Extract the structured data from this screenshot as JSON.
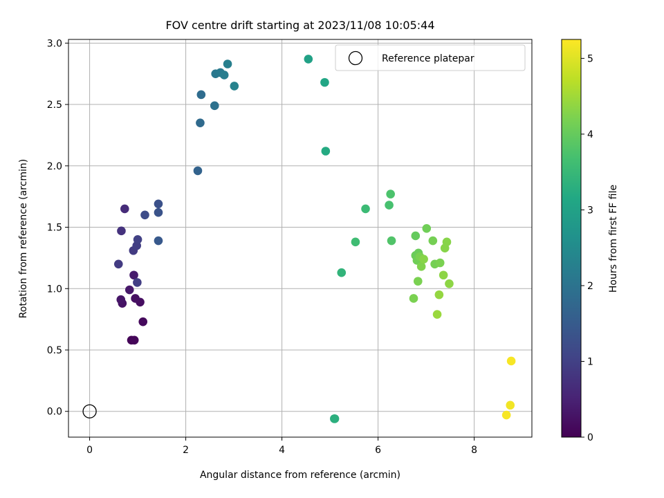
{
  "chart_data": {
    "type": "scatter",
    "title": "FOV centre drift starting at 2023/11/08 10:05:44",
    "xlabel": "Angular distance from reference (arcmin)",
    "ylabel": "Rotation from reference (arcmin)",
    "xlim": [
      -0.44,
      9.2
    ],
    "ylim": [
      -0.21,
      3.03
    ],
    "xticks": [
      0,
      2,
      4,
      6,
      8
    ],
    "yticks": [
      0.0,
      0.5,
      1.0,
      1.5,
      2.0,
      2.5,
      3.0
    ],
    "xtick_labels": [
      "0",
      "2",
      "4",
      "6",
      "8"
    ],
    "ytick_labels": [
      "0.0",
      "0.5",
      "1.0",
      "1.5",
      "2.0",
      "2.5",
      "3.0"
    ],
    "grid": true,
    "legend": {
      "placement": "top-right",
      "entries": [
        "Reference platepar"
      ]
    },
    "colorbar": {
      "label": "Hours from first FF file",
      "range": [
        0,
        5.25
      ],
      "ticks": [
        0,
        1,
        2,
        3,
        4,
        5
      ],
      "tick_labels": [
        "0",
        "1",
        "2",
        "3",
        "4",
        "5"
      ],
      "colormap": "viridis"
    },
    "reference": {
      "x": 0,
      "y": 0
    },
    "points": [
      {
        "x": 0.87,
        "y": 0.58,
        "h": 0.05
      },
      {
        "x": 0.93,
        "y": 0.58,
        "h": 0.08
      },
      {
        "x": 1.11,
        "y": 0.73,
        "h": 0.12
      },
      {
        "x": 1.05,
        "y": 0.89,
        "h": 0.2
      },
      {
        "x": 0.95,
        "y": 0.92,
        "h": 0.22
      },
      {
        "x": 0.68,
        "y": 0.88,
        "h": 0.25
      },
      {
        "x": 0.65,
        "y": 0.91,
        "h": 0.3
      },
      {
        "x": 0.83,
        "y": 0.99,
        "h": 0.35
      },
      {
        "x": 0.92,
        "y": 1.11,
        "h": 0.4
      },
      {
        "x": 0.99,
        "y": 1.05,
        "h": 0.95
      },
      {
        "x": 0.6,
        "y": 1.2,
        "h": 0.9
      },
      {
        "x": 0.91,
        "y": 1.31,
        "h": 0.9
      },
      {
        "x": 0.98,
        "y": 1.35,
        "h": 0.95
      },
      {
        "x": 1.0,
        "y": 1.4,
        "h": 1.0
      },
      {
        "x": 0.66,
        "y": 1.47,
        "h": 0.75
      },
      {
        "x": 0.73,
        "y": 1.65,
        "h": 0.65
      },
      {
        "x": 1.15,
        "y": 1.6,
        "h": 1.2
      },
      {
        "x": 1.43,
        "y": 1.62,
        "h": 1.35
      },
      {
        "x": 1.43,
        "y": 1.69,
        "h": 1.3
      },
      {
        "x": 1.43,
        "y": 1.39,
        "h": 1.45
      },
      {
        "x": 2.25,
        "y": 1.96,
        "h": 1.65
      },
      {
        "x": 2.3,
        "y": 2.35,
        "h": 1.8
      },
      {
        "x": 2.32,
        "y": 2.58,
        "h": 1.85
      },
      {
        "x": 2.6,
        "y": 2.49,
        "h": 1.95
      },
      {
        "x": 2.62,
        "y": 2.75,
        "h": 2.1
      },
      {
        "x": 2.72,
        "y": 2.76,
        "h": 2.15
      },
      {
        "x": 2.8,
        "y": 2.74,
        "h": 2.2
      },
      {
        "x": 2.87,
        "y": 2.83,
        "h": 2.25
      },
      {
        "x": 3.01,
        "y": 2.65,
        "h": 2.3
      },
      {
        "x": 4.55,
        "y": 2.87,
        "h": 3.0
      },
      {
        "x": 4.89,
        "y": 2.68,
        "h": 3.1
      },
      {
        "x": 4.91,
        "y": 2.12,
        "h": 3.2
      },
      {
        "x": 5.24,
        "y": 1.13,
        "h": 3.4
      },
      {
        "x": 5.53,
        "y": 1.38,
        "h": 3.6
      },
      {
        "x": 5.74,
        "y": 1.65,
        "h": 3.55
      },
      {
        "x": 5.09,
        "y": -0.06,
        "h": 3.25
      },
      {
        "x": 5.1,
        "y": -0.06,
        "h": 3.3
      },
      {
        "x": 6.23,
        "y": 1.68,
        "h": 3.7
      },
      {
        "x": 6.26,
        "y": 1.77,
        "h": 3.75
      },
      {
        "x": 6.28,
        "y": 1.39,
        "h": 3.8
      },
      {
        "x": 6.78,
        "y": 1.43,
        "h": 4.0
      },
      {
        "x": 6.78,
        "y": 1.27,
        "h": 4.05
      },
      {
        "x": 6.81,
        "y": 1.23,
        "h": 4.1
      },
      {
        "x": 6.84,
        "y": 1.29,
        "h": 4.05
      },
      {
        "x": 6.87,
        "y": 1.26,
        "h": 4.2
      },
      {
        "x": 6.9,
        "y": 1.18,
        "h": 4.25
      },
      {
        "x": 6.95,
        "y": 1.24,
        "h": 4.3
      },
      {
        "x": 7.01,
        "y": 1.49,
        "h": 4.1
      },
      {
        "x": 6.83,
        "y": 1.06,
        "h": 4.2
      },
      {
        "x": 6.74,
        "y": 0.92,
        "h": 4.2
      },
      {
        "x": 7.14,
        "y": 1.39,
        "h": 4.15
      },
      {
        "x": 7.18,
        "y": 1.2,
        "h": 4.15
      },
      {
        "x": 7.29,
        "y": 1.21,
        "h": 4.2
      },
      {
        "x": 7.39,
        "y": 1.33,
        "h": 4.3
      },
      {
        "x": 7.43,
        "y": 1.38,
        "h": 4.3
      },
      {
        "x": 7.36,
        "y": 1.11,
        "h": 4.35
      },
      {
        "x": 7.48,
        "y": 1.04,
        "h": 4.35
      },
      {
        "x": 7.27,
        "y": 0.95,
        "h": 4.4
      },
      {
        "x": 7.23,
        "y": 0.79,
        "h": 4.45
      },
      {
        "x": 8.77,
        "y": 0.41,
        "h": 5.2
      },
      {
        "x": 8.75,
        "y": 0.05,
        "h": 5.15
      },
      {
        "x": 8.67,
        "y": -0.03,
        "h": 5.2
      }
    ]
  }
}
